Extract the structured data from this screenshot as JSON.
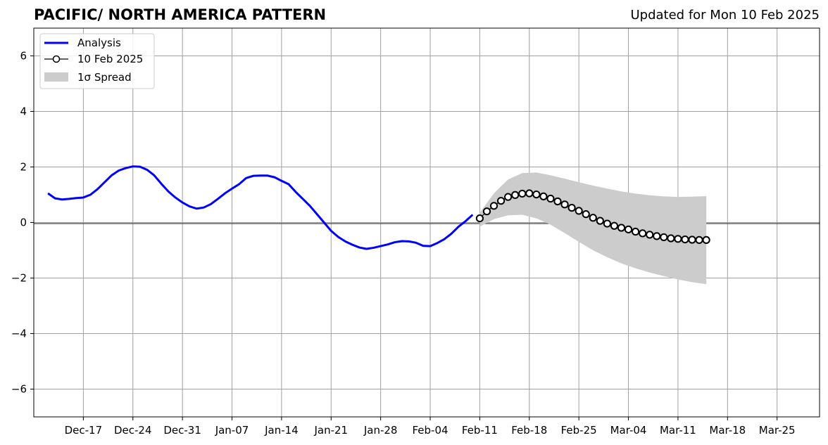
{
  "header": {
    "title": "PACIFIC/ NORTH AMERICA PATTERN",
    "updated": "Updated for Mon 10 Feb 2025"
  },
  "chart_data": {
    "type": "line",
    "title": "PACIFIC/ NORTH AMERICA PATTERN",
    "xlabel": "",
    "ylabel": "",
    "xlim": [
      "2024-12-10",
      "2025-03-31"
    ],
    "ylim": [
      -7,
      7
    ],
    "y_ticks": [
      -6,
      -4,
      -2,
      0,
      2,
      4,
      6
    ],
    "y_tick_labels": [
      "−6",
      "−4",
      "−2",
      "0",
      "2",
      "4",
      "6"
    ],
    "x_ticks": [
      "2024-12-17",
      "2024-12-24",
      "2024-12-31",
      "2025-01-07",
      "2025-01-14",
      "2025-01-21",
      "2025-01-28",
      "2025-02-04",
      "2025-02-11",
      "2025-02-18",
      "2025-02-25",
      "2025-03-04",
      "2025-03-11",
      "2025-03-18",
      "2025-03-25"
    ],
    "x_tick_labels": [
      "Dec-17",
      "Dec-24",
      "Dec-31",
      "Jan-07",
      "Jan-14",
      "Jan-21",
      "Jan-28",
      "Feb-04",
      "Feb-11",
      "Feb-18",
      "Feb-25",
      "Mar-04",
      "Mar-11",
      "Mar-18",
      "Mar-25"
    ],
    "grid": true,
    "legend_position": "top-left",
    "series": [
      {
        "name": "Analysis",
        "color": "#0000ff",
        "style": "line",
        "x": [
          "2024-12-12",
          "2024-12-13",
          "2024-12-14",
          "2024-12-15",
          "2024-12-16",
          "2024-12-17",
          "2024-12-18",
          "2024-12-19",
          "2024-12-20",
          "2024-12-21",
          "2024-12-22",
          "2024-12-23",
          "2024-12-24",
          "2024-12-25",
          "2024-12-26",
          "2024-12-27",
          "2024-12-28",
          "2024-12-29",
          "2024-12-30",
          "2024-12-31",
          "2025-01-01",
          "2025-01-02",
          "2025-01-03",
          "2025-01-04",
          "2025-01-05",
          "2025-01-06",
          "2025-01-07",
          "2025-01-08",
          "2025-01-09",
          "2025-01-10",
          "2025-01-11",
          "2025-01-12",
          "2025-01-13",
          "2025-01-14",
          "2025-01-15",
          "2025-01-16",
          "2025-01-17",
          "2025-01-18",
          "2025-01-19",
          "2025-01-20",
          "2025-01-21",
          "2025-01-22",
          "2025-01-23",
          "2025-01-24",
          "2025-01-25",
          "2025-01-26",
          "2025-01-27",
          "2025-01-28",
          "2025-01-29",
          "2025-01-30",
          "2025-01-31",
          "2025-02-01",
          "2025-02-02",
          "2025-02-03",
          "2025-02-04",
          "2025-02-05",
          "2025-02-06",
          "2025-02-07",
          "2025-02-08",
          "2025-02-09",
          "2025-02-10"
        ],
        "y": [
          1.05,
          0.87,
          0.83,
          0.85,
          0.88,
          0.9,
          1.0,
          1.2,
          1.45,
          1.7,
          1.87,
          1.96,
          2.02,
          2.01,
          1.9,
          1.7,
          1.4,
          1.12,
          0.9,
          0.72,
          0.58,
          0.5,
          0.54,
          0.66,
          0.85,
          1.05,
          1.22,
          1.38,
          1.6,
          1.68,
          1.69,
          1.69,
          1.63,
          1.5,
          1.38,
          1.1,
          0.85,
          0.6,
          0.3,
          0.0,
          -0.3,
          -0.52,
          -0.68,
          -0.8,
          -0.9,
          -0.95,
          -0.91,
          -0.85,
          -0.79,
          -0.71,
          -0.67,
          -0.68,
          -0.73,
          -0.84,
          -0.85,
          -0.74,
          -0.6,
          -0.4,
          -0.15,
          0.05,
          0.28
        ]
      },
      {
        "name": "10 Feb 2025",
        "color": "#000000",
        "style": "line-marker",
        "x": [
          "2025-02-11",
          "2025-02-12",
          "2025-02-13",
          "2025-02-14",
          "2025-02-15",
          "2025-02-16",
          "2025-02-17",
          "2025-02-18",
          "2025-02-19",
          "2025-02-20",
          "2025-02-21",
          "2025-02-22",
          "2025-02-23",
          "2025-02-24",
          "2025-02-25",
          "2025-02-26",
          "2025-02-27",
          "2025-02-28",
          "2025-03-01",
          "2025-03-02",
          "2025-03-03",
          "2025-03-04",
          "2025-03-05",
          "2025-03-06",
          "2025-03-07",
          "2025-03-08",
          "2025-03-09",
          "2025-03-10",
          "2025-03-11",
          "2025-03-12",
          "2025-03-13",
          "2025-03-14",
          "2025-03-15"
        ],
        "y": [
          0.15,
          0.4,
          0.6,
          0.78,
          0.92,
          0.99,
          1.04,
          1.05,
          1.01,
          0.94,
          0.86,
          0.76,
          0.65,
          0.53,
          0.42,
          0.3,
          0.17,
          0.06,
          -0.04,
          -0.12,
          -0.19,
          -0.25,
          -0.33,
          -0.39,
          -0.44,
          -0.49,
          -0.53,
          -0.57,
          -0.59,
          -0.61,
          -0.62,
          -0.63,
          -0.63
        ]
      },
      {
        "name": "1σ Spread",
        "color": "#cccccc",
        "style": "band",
        "x": [
          "2025-02-11",
          "2025-02-13",
          "2025-02-15",
          "2025-02-17",
          "2025-02-19",
          "2025-02-21",
          "2025-02-23",
          "2025-02-25",
          "2025-02-27",
          "2025-03-01",
          "2025-03-03",
          "2025-03-05",
          "2025-03-07",
          "2025-03-09",
          "2025-03-11",
          "2025-03-13",
          "2025-03-15"
        ],
        "lower": [
          -0.15,
          0.12,
          0.26,
          0.28,
          0.15,
          -0.08,
          -0.38,
          -0.7,
          -1.0,
          -1.25,
          -1.47,
          -1.65,
          -1.8,
          -1.93,
          -2.05,
          -2.15,
          -2.22
        ],
        "upper": [
          0.35,
          1.05,
          1.55,
          1.78,
          1.8,
          1.7,
          1.58,
          1.45,
          1.33,
          1.22,
          1.12,
          1.04,
          0.98,
          0.94,
          0.92,
          0.93,
          0.95
        ]
      }
    ]
  }
}
